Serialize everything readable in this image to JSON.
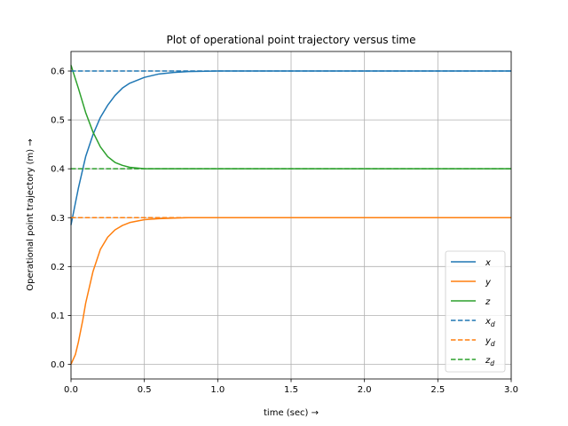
{
  "chart_data": {
    "type": "line",
    "title": "Plot of operational point trajectory versus time",
    "xlabel": "time (sec)  →",
    "ylabel": "Operational point trajectory (m)  →",
    "xlim": [
      0,
      3
    ],
    "ylim": [
      -0.03,
      0.64
    ],
    "xticks": [
      0.0,
      0.5,
      1.0,
      1.5,
      2.0,
      2.5,
      3.0
    ],
    "xtick_labels": [
      "0.0",
      "0.5",
      "1.0",
      "1.5",
      "2.0",
      "2.5",
      "3.0"
    ],
    "yticks": [
      0.0,
      0.1,
      0.2,
      0.3,
      0.4,
      0.5,
      0.6
    ],
    "ytick_labels": [
      "0.0",
      "0.1",
      "0.2",
      "0.3",
      "0.4",
      "0.5",
      "0.6"
    ],
    "grid": true,
    "legend_position": "lower-right",
    "series": [
      {
        "name": "x",
        "legend_sub": "",
        "color": "#1f77b4",
        "style": "solid",
        "x": [
          0,
          0.05,
          0.1,
          0.15,
          0.2,
          0.25,
          0.3,
          0.35,
          0.4,
          0.5,
          0.6,
          0.7,
          0.8,
          1.0,
          1.5,
          2.0,
          2.5,
          3.0
        ],
        "y": [
          0.285,
          0.36,
          0.425,
          0.47,
          0.505,
          0.53,
          0.55,
          0.565,
          0.575,
          0.587,
          0.594,
          0.597,
          0.599,
          0.6,
          0.6,
          0.6,
          0.6,
          0.6
        ]
      },
      {
        "name": "y",
        "legend_sub": "",
        "color": "#ff7f0e",
        "style": "solid",
        "x": [
          0,
          0.03,
          0.05,
          0.08,
          0.1,
          0.15,
          0.2,
          0.25,
          0.3,
          0.35,
          0.4,
          0.5,
          0.6,
          0.7,
          0.8,
          1.0,
          1.5,
          2.0,
          2.5,
          3.0
        ],
        "y": [
          0.0,
          0.02,
          0.045,
          0.09,
          0.125,
          0.19,
          0.235,
          0.26,
          0.275,
          0.284,
          0.29,
          0.296,
          0.298,
          0.299,
          0.3,
          0.3,
          0.3,
          0.3,
          0.3,
          0.3
        ]
      },
      {
        "name": "z",
        "legend_sub": "",
        "color": "#2ca02c",
        "style": "solid",
        "x": [
          0,
          0.05,
          0.1,
          0.15,
          0.2,
          0.25,
          0.3,
          0.35,
          0.4,
          0.5,
          0.6,
          0.7,
          0.8,
          1.0,
          1.5,
          2.0,
          2.5,
          3.0
        ],
        "y": [
          0.612,
          0.565,
          0.515,
          0.475,
          0.445,
          0.425,
          0.413,
          0.407,
          0.403,
          0.4,
          0.4,
          0.4,
          0.4,
          0.4,
          0.4,
          0.4,
          0.4,
          0.4
        ]
      },
      {
        "name": "x",
        "legend_sub": "d",
        "color": "#1f77b4",
        "style": "dashed",
        "x": [
          0,
          3
        ],
        "y": [
          0.6,
          0.6
        ]
      },
      {
        "name": "y",
        "legend_sub": "d",
        "color": "#ff7f0e",
        "style": "dashed",
        "x": [
          0,
          3
        ],
        "y": [
          0.3,
          0.3
        ]
      },
      {
        "name": "z",
        "legend_sub": "d",
        "color": "#2ca02c",
        "style": "dashed",
        "x": [
          0,
          3
        ],
        "y": [
          0.4,
          0.4
        ]
      }
    ]
  }
}
